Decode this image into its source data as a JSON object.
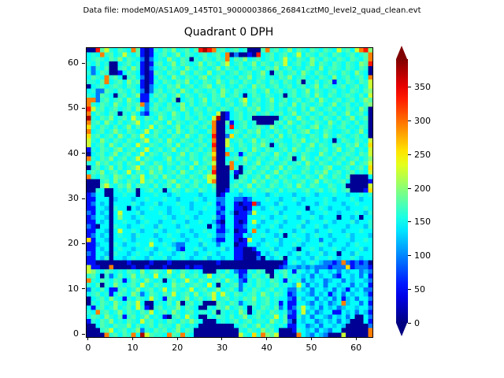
{
  "figure": {
    "annotation": "Data file: modeM0/AS1A09_145T01_9000003866_26841cztM0_level2_quad_clean.evt",
    "title": "Quadrant 0 DPH"
  },
  "chart_data": {
    "type": "heatmap",
    "title": "Quadrant 0 DPH",
    "grid_size": [
      64,
      64
    ],
    "x_ticks": [
      0,
      10,
      20,
      30,
      40,
      50,
      60
    ],
    "y_ticks": [
      0,
      10,
      20,
      30,
      40,
      50,
      60
    ],
    "x_range": [
      0,
      63
    ],
    "y_range": [
      0,
      63
    ],
    "colormap": "jet",
    "vmin": 0,
    "vmax": 392,
    "colorbar_ticks": [
      0,
      50,
      100,
      150,
      200,
      250,
      300,
      350
    ],
    "colorbar_extend": "both",
    "grid": false,
    "value_levels": {
      "0": 8,
      "1": 55,
      "2": 95,
      "3": 125,
      "4": 148,
      "5": 163,
      "6": 178,
      "7": 198,
      "8": 225,
      "9": 258,
      "a": 295,
      "b": 335,
      "c": 375
    },
    "matrix_rows_top_to_bottom": [
      "00b6854654a61015465745646bcba56456450006a56457465465465485648ab7",
      "454a564585461014564574654564564a020010b456456458465465465456456a",
      "4565465746542024547546505465465a4657456456458546547546546546546a",
      "546450045645101564574654574654684564574654658456457465465465476b",
      "4254600564751024564654754654574654654654657456454654745654654650",
      "5246500146541016546547546547456456456457405645647546546546547540",
      "4654a5640564201465475465467456455465745645465745645465474564564a",
      "5546a45647561015465465745465475465465465465465460546456154654658",
      "0456456546541024546574564567456454654756456456456457465456456458",
      "4522654654642025645647546545647546545645745645645746545645465467",
      "5426540564571146564574654654657456404654654505645647546545654648",
      "aa25645647541154654604564574654654684564574564564564754564564576",
      "a54654754656a24654645746456456456457465456465474654564574564 5467",
      "b856456456474256456547546546546546546574564546546475456454654750",
      "a465465054642145654754645645480145645645645645745645645645745640",
      "c546574564854654754654654654 8c0145645000000465475465465464574560",
      "a56475464568454654746545645 6a00614564500005647546546547546546450",
      "954654645746458465457456456 4a004b4564565475465465467456456454650",
      "a4564575465458465464754654 46a00546546574546546456745465445645740",
      "956456475465845645465475465 4b00295465464564745645465475465456450",
      "854754654654684564754654564 5a00845645746546544657456454046546548",
      "845647546548546545647456456 4b00854654657504654564574654654657459",
      "154654674564584564574564564 5a00464564754654564754654564574564548",
      "045645745645846546545746545 6900a45146546547546546544754645654658",
      "a546574564584654457465465465a00456475465456456047546456456456457",
      "5475645646547546546546547456 8005a456457456456456475465456 4574568",
      "0564574645684565745465474564a000a504564564574654564546744564 5649",
      "4657456458465475645647545646b000510564564574654465465745645 64548",
      "a546547654658456475465465468800040564564754654654654754654600004",
      "0005647546548564546745646548a000456547564564654564574654564 00001",
      "0006854657465546456475456454600056457465465456475465446545000008",
      "0054004546504564504654654654500154645645654645545645645645600019",
      "1244004454404445443454444344401444344544345444344543444544344545",
      "1144403444344544454434445434422442212444544344543444454344454344",
      "1243404444543445344454434445412441011b2444354443444345444344 5444",
      "1144305440434454443445434454421441101443454434444044543444344454",
      "2143404844453444543445444344412430112844445344454434454434445435",
      "1244304744345444454344543444521441114445434454434454344404434044",
      "1143404454434544344544344544310441014843445434445344454344453445",
      "2104405443445443544434544440421441124434454344453445434444344435",
      "1144304844543445434454434454411340114a4434454434544344544344 4544",
      "1243404544354443445443443445422441143445443404544345443444534443",
      "9144304454344454344544344544311441018443445344454344244344434454",
      "1134405434454484454322444354424440114434544344543444543444345444",
      "1143404544344543445421445434445341100144453444304454344543444534",
      "2144305443454434544345443445434441100014345443454344534404435444",
      "1143504434544354453445434453443441100020434504434435445434454344",
      "1100000001000010001000000000010000000000000014543454322 12a212120",
      "81100a0000100100010000101100000000000000000123323232221222912221",
      "8754654546547456548546545400054642115465004564154342443424344232",
      "5640524645746548456457456458456445124654605464543424344214434241",
      "a546546514654754504645854654564754215465465415452434423442434432",
      "5460547545648546544756456548405456245465456454384243424434424341",
      "2546411564574564584654584564574564254654564542253424434243143422",
      "4564514654752465465845647456848546545647546541244324341342434431",
      "0456475415465485416545745645845645465745645442153442434241342442",
      "0546547546584004546470564500065465245645645141144324342 34a344241",
      "4156457456485105645574654005465745640546546241258434243423443442",
      "54a5645746546584564754564554605454750465465452148342344114342431",
      "4654754615645745410564854005465464574564558461153424432434240042",
      "1546574546548564546546575400045456456455475462043442343424300041",
      "0046546557464564655475454000000004564574654541144234244343000002",
      "0005684564572546564574650000000000546547564000154342432 44000000a",
      "0000a56465a4c86554a65a54000000000085495a7680000a432432000800000a"
    ]
  }
}
